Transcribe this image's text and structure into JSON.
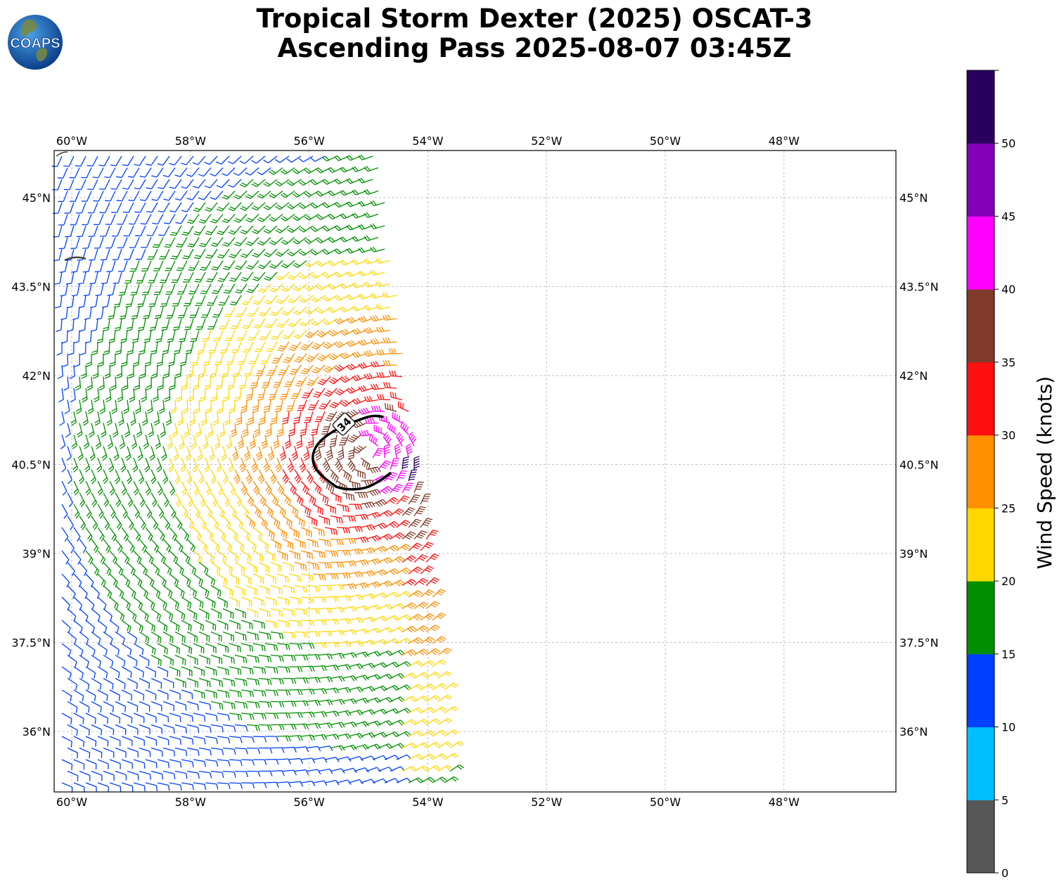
{
  "header": {
    "title_line1": "Tropical Storm Dexter (2025) OSCAT-3",
    "title_line2": "Ascending Pass 2025-08-07 03:45Z",
    "logo_text": "COAPS"
  },
  "map": {
    "lon_ticks": [
      "60°W",
      "58°W",
      "56°W",
      "54°W",
      "52°W",
      "50°W",
      "48°W"
    ],
    "lat_ticks": [
      "45°N",
      "43.5°N",
      "42°N",
      "40.5°N",
      "39°N",
      "37.5°N",
      "36°N"
    ],
    "gridlines": "dashed",
    "contour_label": "34",
    "storm_center": {
      "lon": -55.0,
      "lat": 40.7
    }
  },
  "colorbar": {
    "label": "Wind Speed (knots)",
    "ticks": [
      "0",
      "5",
      "10",
      "15",
      "20",
      "25",
      "30",
      "35",
      "40",
      "45",
      "50"
    ],
    "colors": [
      "#575757",
      "#00bfff",
      "#0040ff",
      "#008f00",
      "#ffd800",
      "#ff8f00",
      "#ff0f0f",
      "#7f3a2a",
      "#ff00ff",
      "#8400b8",
      "#2a005f"
    ]
  }
}
